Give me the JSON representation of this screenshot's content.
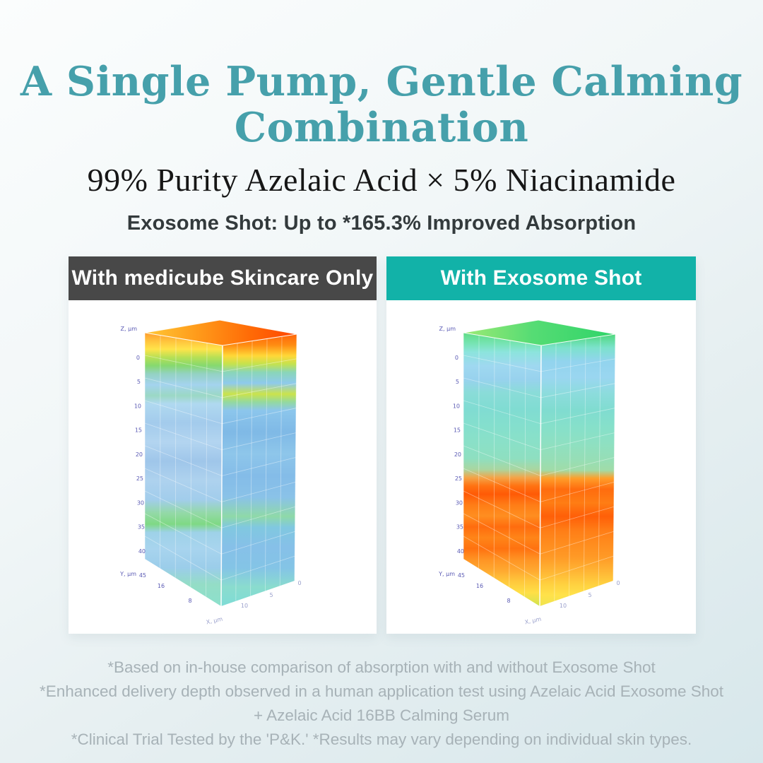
{
  "page": {
    "title_line1": "A Single Pump, Gentle Calming",
    "title_line2": "Combination",
    "subtitle": "99% Purity Azelaic Acid × 5% Niacinamide",
    "tagline": "Exosome Shot: Up to *165.3% Improved Absorption"
  },
  "colors": {
    "title_teal": "#46a0ab",
    "header_dark": "#484848",
    "header_teal": "#12b2a8",
    "tick_label": "#5a5ab4",
    "faint_tick_label": "#9aa0cc"
  },
  "panels": [
    {
      "label": "With medicube Skincare Only",
      "header_color": "#484848"
    },
    {
      "label": "With Exosome Shot",
      "header_color": "#12b2a8"
    }
  ],
  "footnotes": [
    "*Based on in-house comparison of absorption with and without Exosome Shot",
    "*Enhanced delivery depth observed in a human application test using Azelaic Acid Exosome Shot",
    "+ Azelaic Acid 16BB Calming Serum",
    "*Clinical Trial Tested by the 'P&K.' *Results may vary depending on individual skin types."
  ],
  "chart_data": [
    {
      "type": "heatmap",
      "projection": "3d-volume-column",
      "title": "With medicube Skincare Only",
      "axes": {
        "z_label": "Z, μm",
        "y_label": "Y, μm",
        "x_label": "X, μm",
        "z_ticks": [
          "0",
          "5",
          "10",
          "15",
          "20",
          "25",
          "30",
          "35",
          "40",
          "45"
        ],
        "y_ticks": [
          "16",
          "8"
        ],
        "x_ticks": [
          "0",
          "5",
          "10"
        ],
        "z_range_um": [
          0,
          45
        ]
      },
      "reading": "High absorption (red/orange) only at the surface 0–5 μm; pale blue (low signal) from ~8 μm to 45 μm with faint green streaks near 25 and 35 μm.",
      "faces": {
        "top": [
          [
            0,
            "#ffc937"
          ],
          [
            35,
            "#ff9a1a"
          ],
          [
            70,
            "#ff6a06"
          ],
          [
            100,
            "#ff4500"
          ]
        ],
        "left": [
          [
            0,
            "#ff9d2e"
          ],
          [
            3,
            "#ffc33c"
          ],
          [
            6,
            "#ffe44a"
          ],
          [
            9,
            "#b7e055"
          ],
          [
            12,
            "#86d96e"
          ],
          [
            15,
            "#93d2c2"
          ],
          [
            19,
            "#a4d3ee"
          ],
          [
            23,
            "#9bd8c4"
          ],
          [
            26,
            "#b0d9f0"
          ],
          [
            33,
            "#a3cbec"
          ],
          [
            40,
            "#b3d5f0"
          ],
          [
            47,
            "#9fc6ea"
          ],
          [
            54,
            "#aed2ee"
          ],
          [
            61,
            "#a2cdec"
          ],
          [
            66,
            "#93d9a6"
          ],
          [
            70,
            "#7fd984"
          ],
          [
            73,
            "#9ed2e8"
          ],
          [
            79,
            "#a8d4ee"
          ],
          [
            86,
            "#9bcdea"
          ],
          [
            92,
            "#94ddc6"
          ],
          [
            100,
            "#8ce0cc"
          ]
        ],
        "right": [
          [
            0,
            "#ff660a"
          ],
          [
            4,
            "#ff8c12"
          ],
          [
            8,
            "#ffd838"
          ],
          [
            11,
            "#c4e24e"
          ],
          [
            14,
            "#8ad6b8"
          ],
          [
            18,
            "#8ecaec"
          ],
          [
            22,
            "#cbe34c"
          ],
          [
            25,
            "#93d9a0"
          ],
          [
            28,
            "#8cc6ec"
          ],
          [
            36,
            "#7fb9e6"
          ],
          [
            44,
            "#8ec6ea"
          ],
          [
            52,
            "#84bce8"
          ],
          [
            60,
            "#8ac2e8"
          ],
          [
            67,
            "#8fd9a8"
          ],
          [
            71,
            "#80c8e0"
          ],
          [
            78,
            "#86c0e8"
          ],
          [
            86,
            "#84c4e6"
          ],
          [
            93,
            "#8adcce"
          ],
          [
            100,
            "#7edcd6"
          ]
        ]
      }
    },
    {
      "type": "heatmap",
      "projection": "3d-volume-column",
      "title": "With Exosome Shot",
      "axes": {
        "z_label": "Z, μm",
        "y_label": "Y, μm",
        "x_label": "X, μm",
        "z_ticks": [
          "0",
          "5",
          "10",
          "15",
          "20",
          "25",
          "30",
          "35",
          "40",
          "45"
        ],
        "y_ticks": [
          "16",
          "8"
        ],
        "x_ticks": [
          "0",
          "5",
          "10"
        ],
        "z_range_um": [
          0,
          45
        ]
      },
      "reading": "Green/cyan (moderate) at 0–20 μm, then strong red/orange absorption from ~23 μm down to 45 μm, fading to yellow-green at the bottom — deeper delivery with Exosome Shot.",
      "faces": {
        "top": [
          [
            0,
            "#9eea75"
          ],
          [
            45,
            "#56dc74"
          ],
          [
            100,
            "#2fd469"
          ]
        ],
        "left": [
          [
            0,
            "#5fdc86"
          ],
          [
            4,
            "#77e4b4"
          ],
          [
            7,
            "#8ce4dc"
          ],
          [
            12,
            "#9fd8f0"
          ],
          [
            17,
            "#98d2ee"
          ],
          [
            22,
            "#8adcd8"
          ],
          [
            28,
            "#80dcd2"
          ],
          [
            34,
            "#84dfcd"
          ],
          [
            40,
            "#8ae0c8"
          ],
          [
            46,
            "#8edfc0"
          ],
          [
            50,
            "#aad6a0"
          ],
          [
            53,
            "#f4a448"
          ],
          [
            56,
            "#ff7312"
          ],
          [
            59,
            "#ff5a06"
          ],
          [
            63,
            "#ff7d16"
          ],
          [
            67,
            "#ff8e20"
          ],
          [
            71,
            "#ff6c0e"
          ],
          [
            75,
            "#ff8518"
          ],
          [
            79,
            "#ff7210"
          ],
          [
            83,
            "#ff9424"
          ],
          [
            87,
            "#ffa930"
          ],
          [
            91,
            "#ffc83c"
          ],
          [
            95,
            "#ffdf46"
          ],
          [
            98,
            "#e4e24c"
          ],
          [
            100,
            "#cbe44e"
          ]
        ],
        "right": [
          [
            0,
            "#4fd87c"
          ],
          [
            5,
            "#7ce2cc"
          ],
          [
            10,
            "#92d4ee"
          ],
          [
            16,
            "#9ad6f0"
          ],
          [
            22,
            "#8cdcdc"
          ],
          [
            28,
            "#80dcd0"
          ],
          [
            34,
            "#86e0ca"
          ],
          [
            40,
            "#8ee0c2"
          ],
          [
            46,
            "#96deb6"
          ],
          [
            50,
            "#a0dca8"
          ],
          [
            53,
            "#ff9e2a"
          ],
          [
            57,
            "#ff6c0e"
          ],
          [
            62,
            "#ff7d14"
          ],
          [
            67,
            "#ff5f08"
          ],
          [
            72,
            "#ff7d16"
          ],
          [
            77,
            "#ff8c1e"
          ],
          [
            82,
            "#ff9a26"
          ],
          [
            87,
            "#ffb434"
          ],
          [
            92,
            "#ffd140"
          ],
          [
            96,
            "#ffe24a"
          ],
          [
            100,
            "#f0e44e"
          ]
        ]
      }
    }
  ]
}
